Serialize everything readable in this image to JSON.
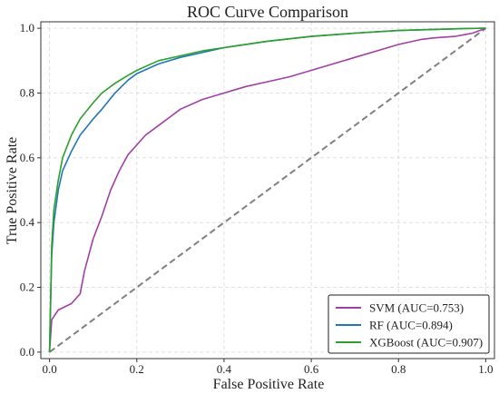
{
  "chart_data": {
    "type": "line",
    "title": "ROC Curve Comparison",
    "xlabel": "False Positive Rate",
    "ylabel": "True Positive Rate",
    "xlim": [
      -0.02,
      1.02
    ],
    "ylim": [
      -0.02,
      1.02
    ],
    "xticks": [
      "0.0",
      "0.2",
      "0.4",
      "0.6",
      "0.8",
      "1.0"
    ],
    "yticks": [
      "0.0",
      "0.2",
      "0.4",
      "0.6",
      "0.8",
      "1.0"
    ],
    "grid": true,
    "legend_position": "bottom-right",
    "series": [
      {
        "name": "SVM (AUC=0.753)",
        "color": "#a23fa6",
        "x": [
          0,
          0.005,
          0.02,
          0.05,
          0.07,
          0.08,
          0.09,
          0.1,
          0.12,
          0.14,
          0.16,
          0.18,
          0.2,
          0.22,
          0.25,
          0.28,
          0.3,
          0.35,
          0.4,
          0.45,
          0.5,
          0.55,
          0.6,
          0.65,
          0.7,
          0.75,
          0.8,
          0.85,
          0.88,
          0.9,
          0.93,
          0.95,
          0.97,
          1.0
        ],
        "y": [
          0,
          0.1,
          0.13,
          0.15,
          0.18,
          0.25,
          0.3,
          0.35,
          0.42,
          0.5,
          0.56,
          0.61,
          0.64,
          0.67,
          0.7,
          0.73,
          0.75,
          0.78,
          0.8,
          0.82,
          0.835,
          0.85,
          0.87,
          0.89,
          0.91,
          0.93,
          0.95,
          0.965,
          0.97,
          0.972,
          0.975,
          0.98,
          0.985,
          1.0
        ]
      },
      {
        "name": "RF (AUC=0.894)",
        "color": "#1f77b4",
        "x": [
          0,
          0.005,
          0.01,
          0.02,
          0.03,
          0.05,
          0.07,
          0.1,
          0.12,
          0.15,
          0.18,
          0.2,
          0.25,
          0.3,
          0.35,
          0.4,
          0.5,
          0.6,
          0.7,
          0.8,
          0.9,
          0.95,
          1.0
        ],
        "y": [
          0,
          0.3,
          0.4,
          0.5,
          0.56,
          0.62,
          0.67,
          0.72,
          0.75,
          0.8,
          0.84,
          0.86,
          0.89,
          0.91,
          0.925,
          0.94,
          0.96,
          0.975,
          0.985,
          0.993,
          0.997,
          0.999,
          1.0
        ]
      },
      {
        "name": "XGBoost (AUC=0.907)",
        "color": "#2ca02c",
        "x": [
          0,
          0.005,
          0.01,
          0.02,
          0.03,
          0.05,
          0.07,
          0.1,
          0.12,
          0.15,
          0.18,
          0.2,
          0.25,
          0.3,
          0.35,
          0.4,
          0.5,
          0.6,
          0.7,
          0.8,
          0.9,
          0.95,
          1.0
        ],
        "y": [
          0,
          0.33,
          0.44,
          0.53,
          0.6,
          0.67,
          0.72,
          0.77,
          0.8,
          0.83,
          0.855,
          0.87,
          0.9,
          0.915,
          0.93,
          0.94,
          0.96,
          0.975,
          0.985,
          0.993,
          0.997,
          0.999,
          1.0
        ]
      }
    ],
    "reference_line": {
      "x": [
        0,
        1
      ],
      "y": [
        0,
        1
      ],
      "color": "#808080",
      "style": "dashed"
    }
  }
}
